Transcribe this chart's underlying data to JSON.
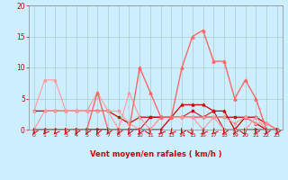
{
  "x": [
    0,
    1,
    2,
    3,
    4,
    5,
    6,
    7,
    8,
    9,
    10,
    11,
    12,
    13,
    14,
    15,
    16,
    17,
    18,
    19,
    20,
    21,
    22,
    23
  ],
  "series": [
    {
      "y": [
        3,
        3,
        3,
        3,
        3,
        3,
        3,
        3,
        2,
        1,
        2,
        2,
        2,
        2,
        2,
        2,
        2,
        2,
        2,
        2,
        2,
        2,
        1,
        0
      ],
      "color": "#cc0000",
      "marker": "s",
      "markersize": 1.8,
      "linewidth": 0.9,
      "linestyle": "-"
    },
    {
      "y": [
        0,
        0,
        0,
        0,
        0,
        0,
        0,
        0,
        0,
        0,
        0,
        0,
        0,
        2,
        4,
        4,
        4,
        3,
        3,
        0,
        2,
        1,
        0,
        0
      ],
      "color": "#cc0000",
      "marker": "^",
      "markersize": 2.0,
      "linewidth": 0.9,
      "linestyle": "-"
    },
    {
      "y": [
        0,
        0,
        0,
        0,
        0,
        0,
        0,
        0,
        0,
        0,
        0,
        2,
        2,
        2,
        2,
        3,
        2,
        3,
        0,
        0,
        0,
        0,
        0,
        0
      ],
      "color": "#cc0000",
      "marker": "s",
      "markersize": 1.8,
      "linewidth": 0.7,
      "linestyle": "-"
    },
    {
      "y": [
        0,
        3,
        3,
        3,
        3,
        3,
        6,
        3,
        3,
        1,
        0,
        0,
        2,
        2,
        2,
        2,
        2,
        2,
        2,
        1,
        2,
        1,
        1,
        0
      ],
      "color": "#ff9999",
      "marker": "s",
      "markersize": 1.8,
      "linewidth": 0.8,
      "linestyle": "-"
    },
    {
      "y": [
        3,
        8,
        8,
        3,
        3,
        3,
        3,
        3,
        0,
        6,
        2,
        0,
        2,
        2,
        2,
        2,
        0,
        2,
        0,
        0,
        0,
        2,
        0,
        0
      ],
      "color": "#ff9999",
      "marker": "^",
      "markersize": 2.0,
      "linewidth": 0.8,
      "linestyle": "-"
    },
    {
      "y": [
        0,
        0,
        0,
        0,
        0,
        0,
        6,
        0,
        0,
        0,
        10,
        6,
        2,
        2,
        10,
        15,
        16,
        11,
        11,
        5,
        8,
        5,
        0,
        0
      ],
      "color": "#ff6666",
      "marker": "^",
      "markersize": 2.2,
      "linewidth": 1.0,
      "linestyle": "-"
    }
  ],
  "xlabel": "Vent moyen/en rafales ( km/h )",
  "ylim": [
    0,
    20
  ],
  "xlim": [
    -0.5,
    23.5
  ],
  "yticks": [
    0,
    5,
    10,
    15,
    20
  ],
  "xticks": [
    0,
    1,
    2,
    3,
    4,
    5,
    6,
    7,
    8,
    9,
    10,
    11,
    12,
    13,
    14,
    15,
    16,
    17,
    18,
    19,
    20,
    21,
    22,
    23
  ],
  "bg_color": "#cceeff",
  "grid_color": "#aacccc",
  "tick_color": "#cc0000",
  "label_color": "#cc0000",
  "arrow_color": "#cc0000",
  "arrow_angles": [
    225,
    210,
    210,
    225,
    225,
    225,
    225,
    225,
    225,
    225,
    225,
    270,
    210,
    210,
    225,
    270,
    210,
    210,
    225,
    225,
    270,
    225,
    225,
    225
  ]
}
